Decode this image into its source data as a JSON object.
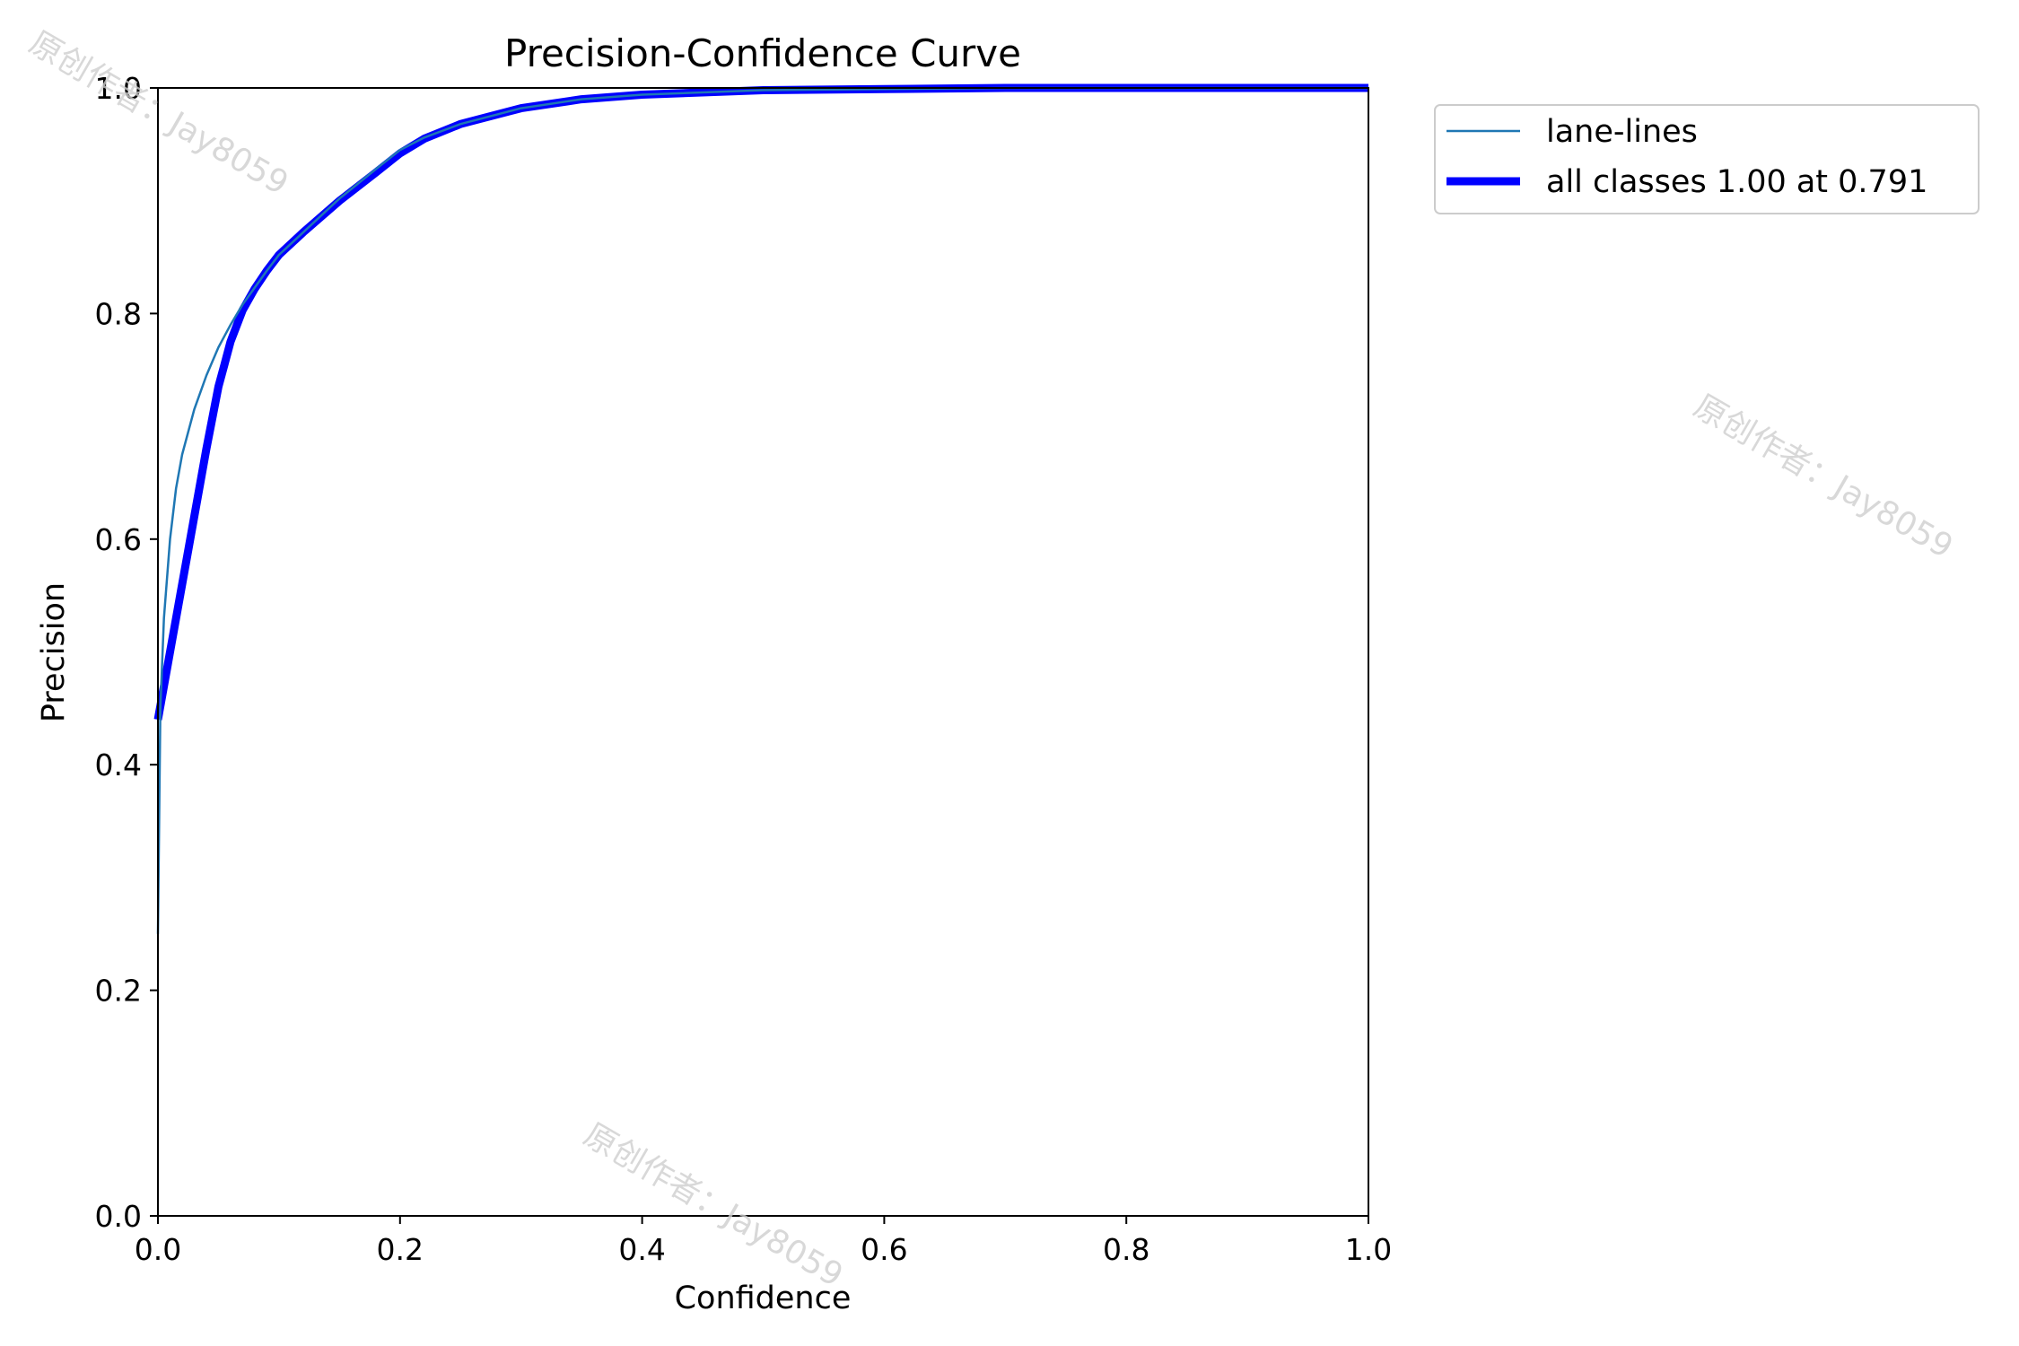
{
  "chart_data": {
    "type": "line",
    "title": "Precision-Confidence Curve",
    "xlabel": "Confidence",
    "ylabel": "Precision",
    "xlim": [
      0,
      1
    ],
    "ylim": [
      0,
      1
    ],
    "x_ticks": [
      "0.0",
      "0.2",
      "0.4",
      "0.6",
      "0.8",
      "1.0"
    ],
    "y_ticks": [
      "0.0",
      "0.2",
      "0.4",
      "0.6",
      "0.8",
      "1.0"
    ],
    "grid": false,
    "legend_position": "outside-top-right",
    "series": [
      {
        "name": "lane-lines",
        "color": "#1f77b4",
        "line_width": "thin",
        "x": [
          0.0,
          0.002,
          0.005,
          0.01,
          0.015,
          0.02,
          0.03,
          0.04,
          0.05,
          0.06,
          0.07,
          0.08,
          0.09,
          0.1,
          0.12,
          0.15,
          0.18,
          0.2,
          0.22,
          0.25,
          0.3,
          0.35,
          0.4,
          0.5,
          0.6,
          0.7,
          0.8,
          0.9,
          1.0
        ],
        "y": [
          0.25,
          0.45,
          0.53,
          0.6,
          0.645,
          0.675,
          0.715,
          0.745,
          0.77,
          0.79,
          0.808,
          0.823,
          0.838,
          0.852,
          0.872,
          0.902,
          0.928,
          0.945,
          0.956,
          0.968,
          0.982,
          0.99,
          0.994,
          0.998,
          0.999,
          1.0,
          1.0,
          1.0,
          1.0
        ]
      },
      {
        "name": "all classes 1.00 at 0.791",
        "color": "#0000ff",
        "line_width": "thick",
        "x": [
          0.0,
          0.01,
          0.02,
          0.03,
          0.04,
          0.05,
          0.055,
          0.06,
          0.07,
          0.08,
          0.09,
          0.1,
          0.12,
          0.15,
          0.18,
          0.2,
          0.22,
          0.25,
          0.3,
          0.35,
          0.4,
          0.5,
          0.6,
          0.7,
          0.8,
          0.9,
          1.0
        ],
        "y": [
          0.44,
          0.5,
          0.56,
          0.62,
          0.68,
          0.735,
          0.755,
          0.775,
          0.803,
          0.822,
          0.838,
          0.852,
          0.872,
          0.9,
          0.925,
          0.942,
          0.955,
          0.968,
          0.982,
          0.99,
          0.994,
          0.998,
          0.999,
          1.0,
          1.0,
          1.0,
          1.0
        ]
      }
    ]
  },
  "watermarks": [
    {
      "text": "原创作者：Jay8059"
    },
    {
      "text": "原创作者：Jay8059"
    },
    {
      "text": "原创作者：Jay8059"
    }
  ]
}
